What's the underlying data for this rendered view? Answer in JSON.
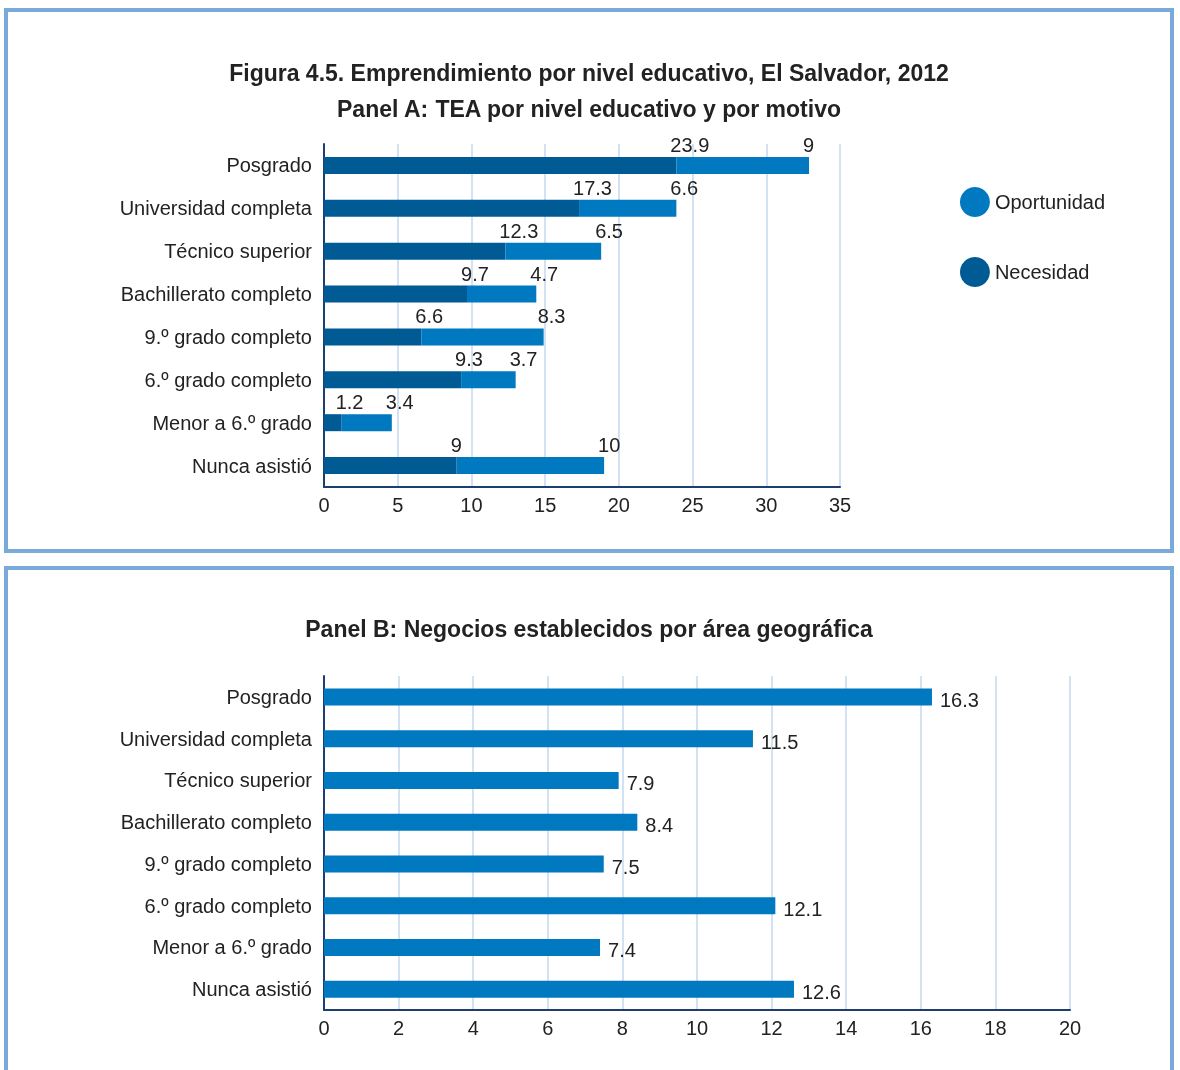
{
  "chart_data": [
    {
      "type": "bar",
      "orientation": "horizontal",
      "stacked": true,
      "title": "Figura 4.5. Emprendimiento por nivel educativo, El Salvador, 2012",
      "subtitle": "Panel A: TEA por nivel educativo y por motivo",
      "categories": [
        "Posgrado",
        "Universidad completa",
        "Técnico superior",
        "Bachillerato completo",
        "9.º grado completo",
        "6.º grado completo",
        "Menor a 6.º grado",
        "Nunca asistió"
      ],
      "series": [
        {
          "name": "Necesidad",
          "color": "#005b94",
          "values": [
            23.9,
            17.3,
            12.3,
            9.7,
            6.6,
            9.3,
            1.2,
            9
          ]
        },
        {
          "name": "Oportunidad",
          "color": "#0079c1",
          "values": [
            9,
            6.6,
            6.5,
            4.7,
            8.3,
            3.7,
            3.4,
            10
          ]
        }
      ],
      "xlim": [
        0,
        35
      ],
      "xticks": [
        0,
        5,
        10,
        15,
        20,
        25,
        30,
        35
      ],
      "grid": "x",
      "legend": "right",
      "data_labels": true
    },
    {
      "type": "bar",
      "orientation": "horizontal",
      "subtitle": "Panel B: Negocios establecidos por área geográfica",
      "categories": [
        "Posgrado",
        "Universidad completa",
        "Técnico superior",
        "Bachillerato completo",
        "9.º grado completo",
        "6.º grado completo",
        "Menor a 6.º grado",
        "Nunca asistió"
      ],
      "series": [
        {
          "color": "#0079c1",
          "values": [
            16.3,
            11.5,
            7.9,
            8.4,
            7.5,
            12.1,
            7.4,
            12.6
          ]
        }
      ],
      "xlim": [
        0,
        20
      ],
      "xticks": [
        0,
        2,
        4,
        6,
        8,
        10,
        12,
        14,
        16,
        18,
        20
      ],
      "grid": "x",
      "data_labels": true
    }
  ]
}
